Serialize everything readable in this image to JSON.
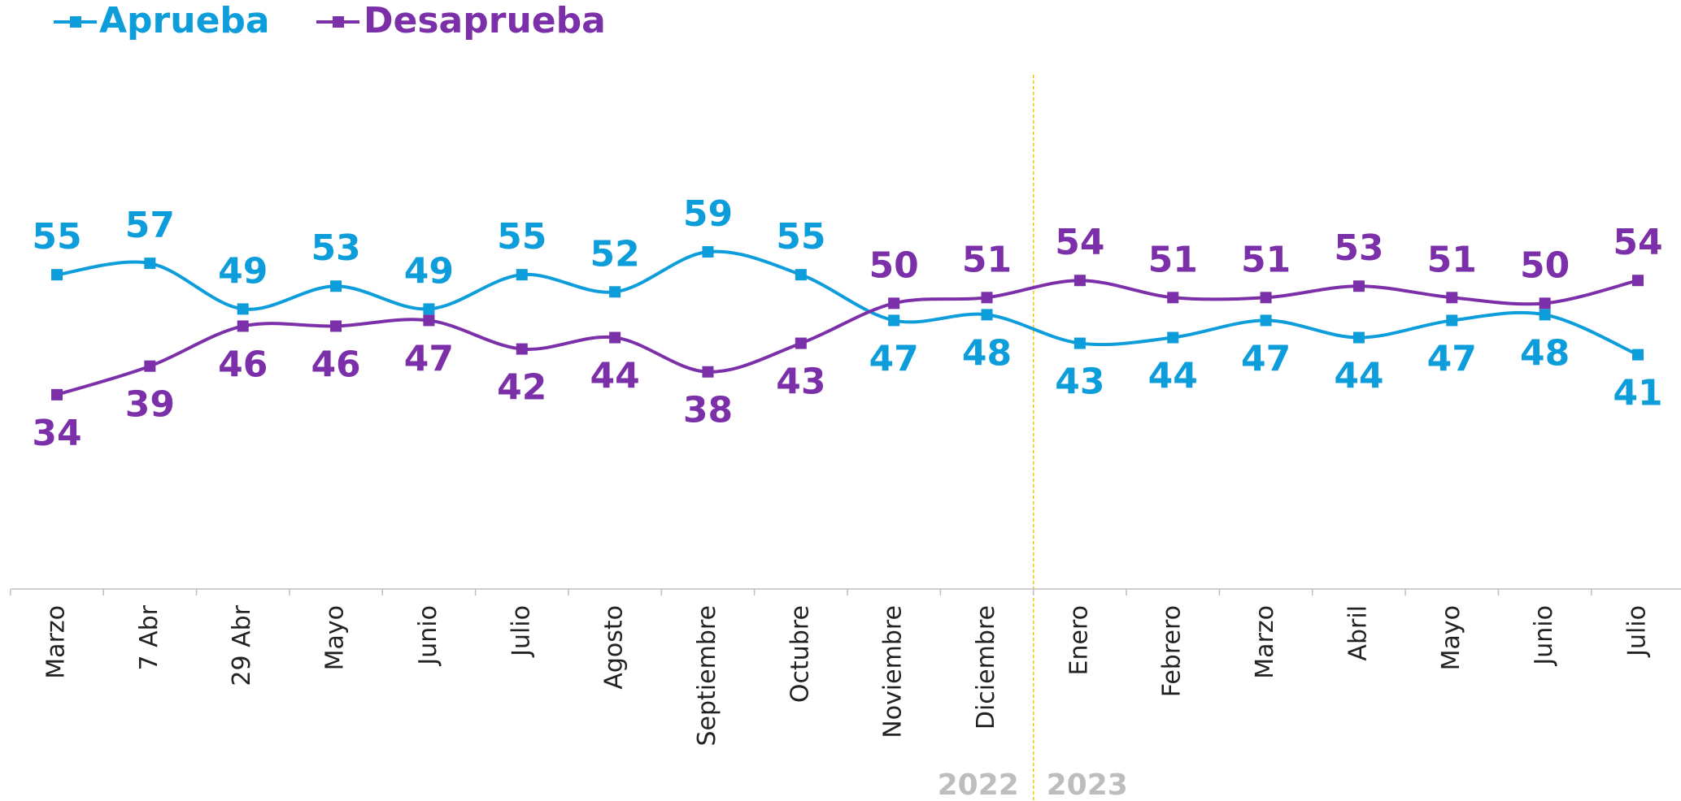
{
  "chart_data": {
    "type": "line",
    "categories": [
      "Marzo",
      "7 Abr",
      "29 Abr",
      "Mayo",
      "Junio",
      "Julio",
      "Agosto",
      "Septiembre",
      "Octubre",
      "Noviembre",
      "Diciembre",
      "Enero",
      "Febrero",
      "Marzo",
      "Abril",
      "Mayo",
      "Junio",
      "Julio"
    ],
    "series": [
      {
        "name": "Aprueba",
        "color": "#0d9ddb",
        "values": [
          55,
          57,
          49,
          53,
          49,
          55,
          52,
          59,
          55,
          47,
          48,
          43,
          44,
          47,
          44,
          47,
          48,
          41
        ]
      },
      {
        "name": "Desaprueba",
        "color": "#7b2fa8",
        "values": [
          34,
          39,
          46,
          46,
          47,
          42,
          44,
          38,
          43,
          50,
          51,
          54,
          51,
          51,
          53,
          51,
          50,
          54
        ]
      }
    ],
    "annotations": [
      "2022",
      "2023"
    ],
    "ylim": [
      0,
      90
    ],
    "legend": "top-left"
  }
}
